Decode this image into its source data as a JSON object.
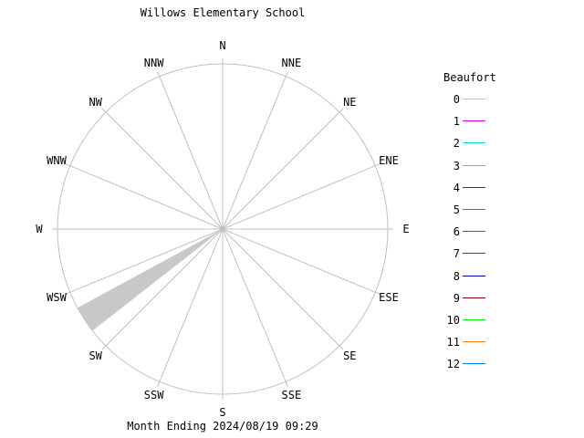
{
  "chart_data": {
    "type": "wind-rose",
    "title": "Willows Elementary School",
    "subtitle": "Month Ending 2024/08/19 09:29",
    "directions": [
      "N",
      "NNE",
      "NE",
      "ENE",
      "E",
      "ESE",
      "SE",
      "SSE",
      "S",
      "SSW",
      "SW",
      "WSW",
      "W",
      "WNW",
      "NW",
      "NNW"
    ],
    "direction_degrees": [
      0,
      22.5,
      45,
      67.5,
      90,
      112.5,
      135,
      157.5,
      180,
      202.5,
      225,
      247.5,
      270,
      292.5,
      315,
      337.5
    ],
    "legend_title": "Beaufort",
    "legend": [
      {
        "label": "0",
        "color": "#c0c0c0"
      },
      {
        "label": "1",
        "color": "#e000e0"
      },
      {
        "label": "2",
        "color": "#00e8e8"
      },
      {
        "label": "3",
        "color": "#f08080"
      },
      {
        "label": "4",
        "color": "#8000e0"
      },
      {
        "label": "5",
        "color": "#a0602a"
      },
      {
        "label": "6",
        "color": "#008080"
      },
      {
        "label": "7",
        "color": "#ff0000"
      },
      {
        "label": "8",
        "color": "#0000c0"
      },
      {
        "label": "9",
        "color": "#900000"
      },
      {
        "label": "10",
        "color": "#00ff00"
      },
      {
        "label": "11",
        "color": "#ff8000"
      },
      {
        "label": "12",
        "color": "#0080ff"
      }
    ],
    "petals": [
      {
        "center_deg": 236.25,
        "start_deg": 232,
        "end_deg": 241.5,
        "radius_fraction": 1.0,
        "beaufort": 0,
        "color": "#c8c8c8"
      }
    ],
    "grid": {
      "circle_color": "#c0c0c0",
      "spoke_color": "#c0c0c0"
    }
  },
  "header": {
    "title": "Willows Elementary School"
  },
  "footer": {
    "text": "Month Ending 2024/08/19 09:29"
  },
  "legend": {
    "title": "Beaufort"
  }
}
